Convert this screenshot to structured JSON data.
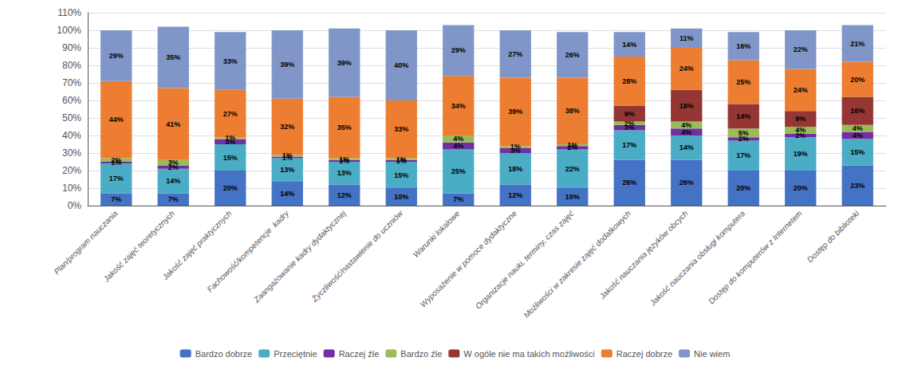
{
  "chart_data": {
    "type": "bar",
    "stacked": true,
    "data_labels": true,
    "grid": true,
    "legend": "bottom",
    "categories": [
      "Plan/program nauczania",
      "Jakość zajęć teoretycznych",
      "Jakość zajęć praktycznych",
      "Fachowość/kompetencje  kadry",
      "Zaangażowanie kadry dydaktycznej",
      "Życzliwość/nastawienie do uczniów",
      "Warunki lokalowe",
      "Wyposażenie w pomoce dydaktyczne",
      "Organizacje nauki, terminy, czas zajęć",
      "Możliwości w zakresie zajęć dodatkowych",
      "Jakość nauczania języków obcych",
      "Jakość nauczania obsługi komputera",
      "Dostęp do komputerów z Internetem",
      "Dostęp do biblioteki"
    ],
    "series": [
      {
        "name": "Bardzo dobrze",
        "color": "#4472C4",
        "values": [
          7,
          7,
          20,
          14,
          12,
          10,
          7,
          12,
          10,
          26,
          26,
          20,
          20,
          23
        ],
        "value_labels": [
          "7%",
          "7%",
          "20%",
          "14%",
          "12%",
          "10%",
          "7%",
          "12%",
          "10%",
          "26%",
          "26%",
          "20%",
          "20%",
          "23%"
        ]
      },
      {
        "name": "Przeciętnie",
        "color": "#4BACC6",
        "values": [
          17,
          14,
          15,
          13,
          13,
          15,
          25,
          18,
          22,
          17,
          14,
          17,
          19,
          15
        ],
        "value_labels": [
          "17%",
          "14%",
          "15%",
          "13%",
          "13%",
          "15%",
          "25%",
          "18%",
          "22%",
          "17%",
          "14%",
          "17%",
          "19%",
          "15%"
        ]
      },
      {
        "name": "Raczej źle",
        "color": "#7030A0",
        "values": [
          1,
          2,
          3,
          1,
          1,
          1,
          4,
          3,
          2,
          3,
          4,
          2,
          2,
          4
        ],
        "value_labels": [
          "1%",
          "2%",
          "3%",
          "1%",
          "1%",
          "1%",
          "4%",
          "3%",
          "2%",
          "3%",
          "4%",
          "2%",
          "2%",
          "4%"
        ]
      },
      {
        "name": "Bardzo źle",
        "color": "#9BBB59",
        "values": [
          2,
          3,
          1,
          1,
          1,
          1,
          4,
          1,
          1,
          2,
          4,
          5,
          4,
          4
        ],
        "value_labels": [
          "2%",
          "3%",
          "1%",
          "1%",
          "1%",
          "1%",
          "4%",
          "1%",
          "1%",
          "2%",
          "4%",
          "5%",
          "4%",
          "4%"
        ]
      },
      {
        "name": "W ogóle nie ma takich możliwości",
        "color": "#943634",
        "values": [
          0,
          0,
          0,
          0,
          0,
          0,
          0,
          0,
          0,
          9,
          18,
          14,
          9,
          16
        ],
        "value_labels": [
          null,
          null,
          null,
          null,
          null,
          null,
          null,
          null,
          null,
          "9%",
          "18%",
          "14%",
          "9%",
          "16%"
        ]
      },
      {
        "name": "Raczej dobrze",
        "color": "#ED7D31",
        "values": [
          44,
          41,
          27,
          32,
          35,
          33,
          34,
          39,
          38,
          28,
          24,
          25,
          24,
          20
        ],
        "value_labels": [
          "44%",
          "41%",
          "27%",
          "32%",
          "35%",
          "33%",
          "34%",
          "39%",
          "38%",
          "28%",
          "24%",
          "25%",
          "24%",
          "20%"
        ]
      },
      {
        "name": "Nie wiem",
        "color": "#8196C8",
        "values": [
          29,
          35,
          33,
          39,
          39,
          40,
          29,
          27,
          26,
          14,
          11,
          16,
          22,
          21
        ],
        "value_labels": [
          "29%",
          "35%",
          "33%",
          "39%",
          "39%",
          "40%",
          "29%",
          "27%",
          "26%",
          "14%",
          "11%",
          "16%",
          "22%",
          "21%"
        ]
      }
    ],
    "ylim": [
      0,
      110
    ],
    "yticks": [
      {
        "value": 0,
        "label": "0%"
      },
      {
        "value": 10,
        "label": "10%"
      },
      {
        "value": 20,
        "label": "20%"
      },
      {
        "value": 30,
        "label": "30%"
      },
      {
        "value": 40,
        "label": "40%"
      },
      {
        "value": 50,
        "label": "50%"
      },
      {
        "value": 60,
        "label": "60%"
      },
      {
        "value": 70,
        "label": "70%"
      },
      {
        "value": 80,
        "label": "80%"
      },
      {
        "value": 90,
        "label": "90%"
      },
      {
        "value": 100,
        "label": "100%"
      },
      {
        "value": 110,
        "label": "110%"
      }
    ]
  }
}
